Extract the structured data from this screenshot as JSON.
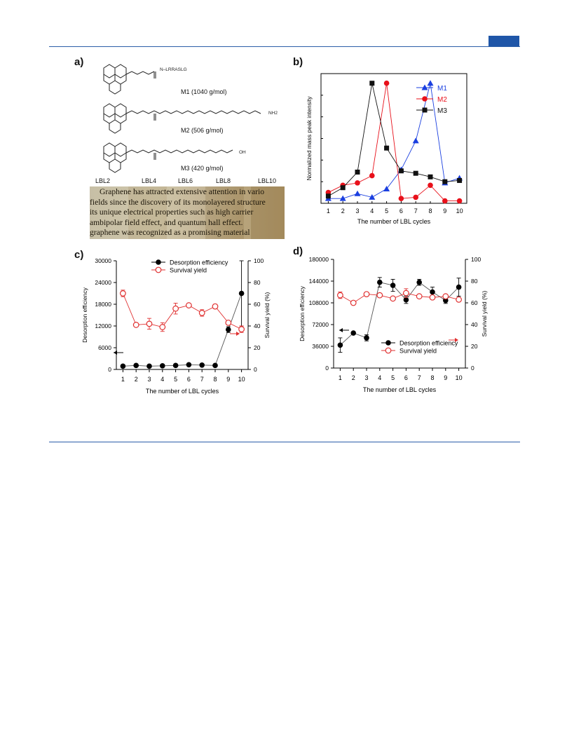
{
  "panel_labels": {
    "a": "a)",
    "b": "b)",
    "c": "c)",
    "d": "d)"
  },
  "panel_a": {
    "molecules": [
      {
        "name": "M1 (1040  g/mol)",
        "substituent": "N–LRRASLG"
      },
      {
        "name": "M2 (506  g/mol)",
        "substituent": "NH2"
      },
      {
        "name": "M3 (420  g/mol)",
        "substituent": "OH"
      }
    ],
    "lbl_labels": [
      "LBL2",
      "LBL4",
      "LBL6",
      "LBL8",
      "LBL10"
    ],
    "photo_text": [
      "Graphene has attracted extensive attention in vario",
      "fields since the discovery of its monolayered structure",
      "its unique electrical properties such as high carrier",
      "ambipolar field effect, and quantum hall effect.",
      "graphene was recognized as a promising material"
    ]
  },
  "chart_data": [
    {
      "panel": "b",
      "type": "line",
      "xlabel": "The number of LBL cycles",
      "ylabel": "Normalized  mass peak intensity",
      "x": [
        1,
        2,
        3,
        4,
        5,
        6,
        7,
        8,
        9,
        10
      ],
      "xlim": [
        0.5,
        10.5
      ],
      "ylim": [
        0,
        1.08
      ],
      "legend_position": "top-right",
      "series": [
        {
          "name": "M1",
          "color": "#1a3fe0",
          "marker": "triangle",
          "values": [
            0.04,
            0.04,
            0.08,
            0.05,
            0.12,
            0.28,
            0.52,
            1.0,
            0.17,
            0.21
          ]
        },
        {
          "name": "M2",
          "color": "#e8101a",
          "marker": "circle",
          "values": [
            0.09,
            0.15,
            0.17,
            0.23,
            1.0,
            0.04,
            0.05,
            0.15,
            0.02,
            0.02
          ]
        },
        {
          "name": "M3",
          "color": "#111111",
          "marker": "square",
          "values": [
            0.06,
            0.13,
            0.26,
            1.0,
            0.46,
            0.27,
            0.25,
            0.22,
            0.18,
            0.19
          ]
        }
      ]
    },
    {
      "panel": "c",
      "type": "line",
      "xlabel": "The number of LBL cycles",
      "ylabel": "Desorption efficiency",
      "y2label": "Survival  yield (%)",
      "x": [
        1,
        2,
        3,
        4,
        5,
        6,
        7,
        8,
        9,
        10
      ],
      "ylim": [
        0,
        30000
      ],
      "yticks": [
        0,
        6000,
        12000,
        18000,
        24000,
        30000
      ],
      "y2lim": [
        0,
        100
      ],
      "y2ticks": [
        0,
        20,
        40,
        60,
        80,
        100
      ],
      "legend_position": "top-right",
      "series": [
        {
          "name": "Desorption efficiency",
          "axis": "left",
          "color": "#000000",
          "marker": "filled-circle",
          "values": [
            900,
            1100,
            900,
            1000,
            1100,
            1300,
            1200,
            1100,
            11000,
            21000
          ],
          "errors": [
            0,
            0,
            0,
            0,
            0,
            0,
            0,
            0,
            800,
            9000
          ]
        },
        {
          "name": "Survival  yield",
          "axis": "right",
          "color": "#e03030",
          "marker": "open-circle",
          "values": [
            70,
            41,
            42,
            39,
            56,
            59,
            52,
            58,
            43,
            37
          ],
          "errors": [
            3,
            0,
            5,
            4,
            5,
            0,
            3,
            2,
            0,
            3
          ]
        }
      ]
    },
    {
      "panel": "d",
      "type": "line",
      "xlabel": "The number of LBL cycles",
      "ylabel": "Desorption efficiency",
      "y2label": "Survival  yield (%)",
      "x": [
        1,
        2,
        3,
        4,
        5,
        6,
        7,
        8,
        9,
        10
      ],
      "ylim": [
        0,
        180000
      ],
      "yticks": [
        0,
        36000,
        72000,
        108000,
        144000,
        180000
      ],
      "y2lim": [
        0,
        100
      ],
      "y2ticks": [
        0,
        20,
        40,
        60,
        80,
        100
      ],
      "legend_position": "bottom-right",
      "series": [
        {
          "name": "Desorption  efficiency",
          "axis": "left",
          "color": "#000000",
          "marker": "filled-circle",
          "values": [
            38000,
            58000,
            50000,
            142000,
            137000,
            113000,
            142000,
            126000,
            112000,
            134000
          ],
          "errors": [
            12000,
            0,
            5000,
            8000,
            10000,
            6000,
            5000,
            8000,
            5000,
            15000
          ]
        },
        {
          "name": "Survival  yield",
          "axis": "right",
          "color": "#e03030",
          "marker": "open-circle",
          "values": [
            67,
            60,
            68,
            67,
            64,
            69,
            66,
            65,
            66,
            63
          ],
          "errors": [
            3,
            0,
            0,
            0,
            0,
            4,
            0,
            0,
            0,
            0
          ]
        }
      ]
    }
  ]
}
